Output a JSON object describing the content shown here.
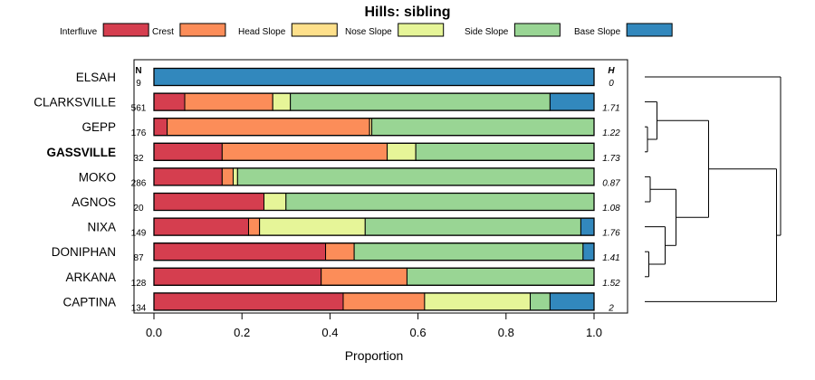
{
  "chart_data": {
    "type": "bar",
    "orientation": "horizontal",
    "stacked": true,
    "title": "Hills: sibling",
    "xlabel": "Proportion",
    "ylabel": "",
    "xlim": [
      0,
      1
    ],
    "xticks": [
      "0.0",
      "0.2",
      "0.4",
      "0.6",
      "0.8",
      "1.0"
    ],
    "xtick_values": [
      0,
      0.2,
      0.4,
      0.6,
      0.8,
      1.0
    ],
    "n_header": "N",
    "h_header": "H",
    "legend": [
      {
        "name": "Interfluve",
        "color": "#d53e4f"
      },
      {
        "name": "Crest",
        "color": "#fc8d59"
      },
      {
        "name": "Head Slope",
        "color": "#fee08b"
      },
      {
        "name": "Nose Slope",
        "color": "#e6f598"
      },
      {
        "name": "Side Slope",
        "color": "#99d594"
      },
      {
        "name": "Base Slope",
        "color": "#3288bd"
      }
    ],
    "categories": [
      "ELSAH",
      "CLARKSVILLE",
      "GEPP",
      "GASSVILLE",
      "MOKO",
      "AGNOS",
      "NIXA",
      "DONIPHAN",
      "ARKANA",
      "CAPTINA"
    ],
    "bold_category": "GASSVILLE",
    "n": [
      "9",
      "561",
      "176",
      "32",
      "286",
      "20",
      "149",
      "87",
      "128",
      "134"
    ],
    "h": [
      "0",
      "1.71",
      "1.22",
      "1.73",
      "0.87",
      "1.08",
      "1.76",
      "1.41",
      "1.52",
      "2"
    ],
    "series": [
      {
        "name": "Interfluve",
        "values": [
          0,
          0.07,
          0.03,
          0.155,
          0.155,
          0.25,
          0.215,
          0.39,
          0.38,
          0.43
        ]
      },
      {
        "name": "Crest",
        "values": [
          0,
          0.2,
          0.46,
          0.375,
          0.025,
          0,
          0.025,
          0.065,
          0.195,
          0.185
        ]
      },
      {
        "name": "Head Slope",
        "values": [
          0,
          0,
          0.005,
          0,
          0,
          0,
          0,
          0,
          0,
          0
        ]
      },
      {
        "name": "Nose Slope",
        "values": [
          0,
          0.04,
          0,
          0.065,
          0.01,
          0.05,
          0.24,
          0,
          0,
          0.24
        ]
      },
      {
        "name": "Side Slope",
        "values": [
          0,
          0.59,
          0.505,
          0.405,
          0.81,
          0.7,
          0.49,
          0.52,
          0.425,
          0.045
        ]
      },
      {
        "name": "Base Slope",
        "values": [
          1.0,
          0.1,
          0,
          0,
          0,
          0,
          0.03,
          0.025,
          0,
          0.1
        ]
      }
    ],
    "dendrogram": {
      "orientation": "right",
      "merges": [
        {
          "id": "m1",
          "left": "GEPP",
          "right": "GASSVILLE",
          "height": 0.02
        },
        {
          "id": "m2",
          "left": "ARKANA",
          "right": "DONIPHAN",
          "height": 0.03
        },
        {
          "id": "m3",
          "left": "MOKO",
          "right": "AGNOS",
          "height": 0.04
        },
        {
          "id": "m4",
          "left": "CLARKSVILLE",
          "right": "m1",
          "height": 0.09
        },
        {
          "id": "m5",
          "left": "NIXA",
          "right": "m2",
          "height": 0.15
        },
        {
          "id": "m6",
          "left": "m3",
          "right": "m5",
          "height": 0.23
        },
        {
          "id": "m7",
          "left": "m4",
          "right": "m6",
          "height": 0.47
        },
        {
          "id": "m8",
          "left": "m7",
          "right": "CAPTINA",
          "height": 0.97
        },
        {
          "id": "m9",
          "left": "ELSAH",
          "right": "m8",
          "height": 1.0
        }
      ]
    }
  }
}
